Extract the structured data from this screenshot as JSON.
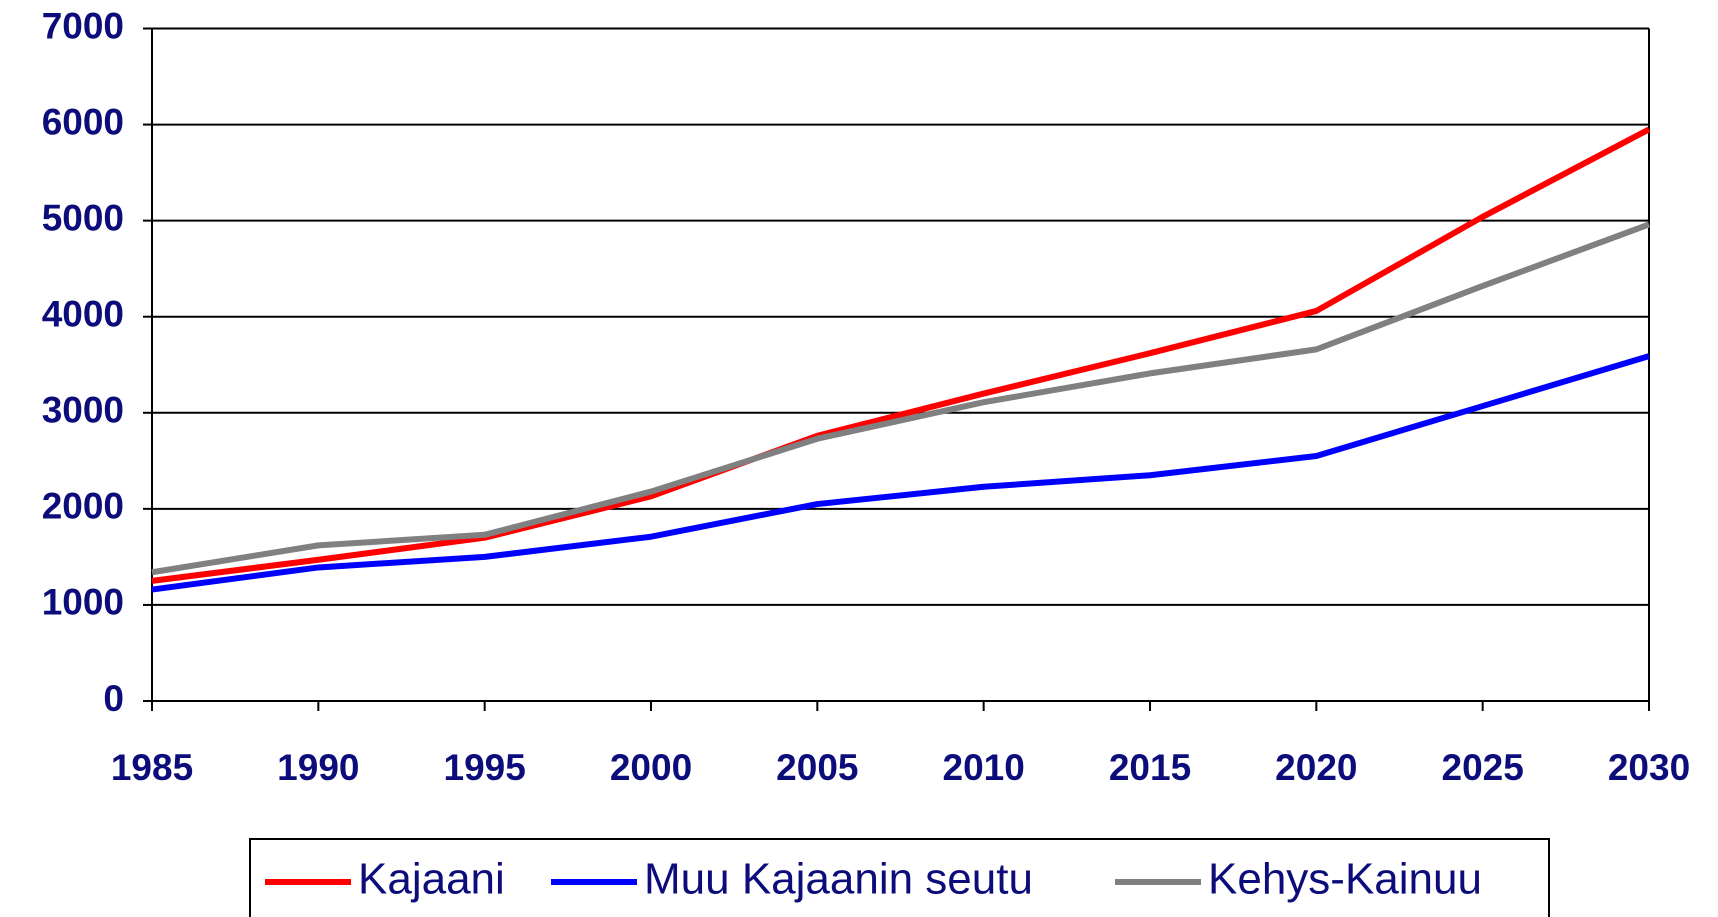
{
  "chart_data": {
    "type": "line",
    "x": [
      1985,
      1990,
      1995,
      2000,
      2005,
      2010,
      2015,
      2020,
      2025,
      2030
    ],
    "series": [
      {
        "name": "Kajaani",
        "color": "#ff0000",
        "values": [
          1250,
          1470,
          1700,
          2130,
          2760,
          3200,
          3620,
          4060,
          5040,
          5950
        ]
      },
      {
        "name": "Muu Kajaanin seutu",
        "color": "#0000ff",
        "values": [
          1160,
          1390,
          1500,
          1710,
          2050,
          2230,
          2350,
          2550,
          3070,
          3590
        ]
      },
      {
        "name": "Kehys-Kainuu",
        "color": "#808080",
        "values": [
          1340,
          1620,
          1730,
          2180,
          2730,
          3110,
          3410,
          3660,
          4320,
          4960
        ]
      }
    ],
    "xlim": [
      1985,
      2030
    ],
    "xticks": [
      1985,
      1990,
      1995,
      2000,
      2005,
      2010,
      2015,
      2020,
      2025,
      2030
    ],
    "ylim": [
      0,
      7000
    ],
    "yticks": [
      0,
      1000,
      2000,
      3000,
      4000,
      5000,
      6000,
      7000
    ],
    "grid": true,
    "legend": "bottom"
  }
}
